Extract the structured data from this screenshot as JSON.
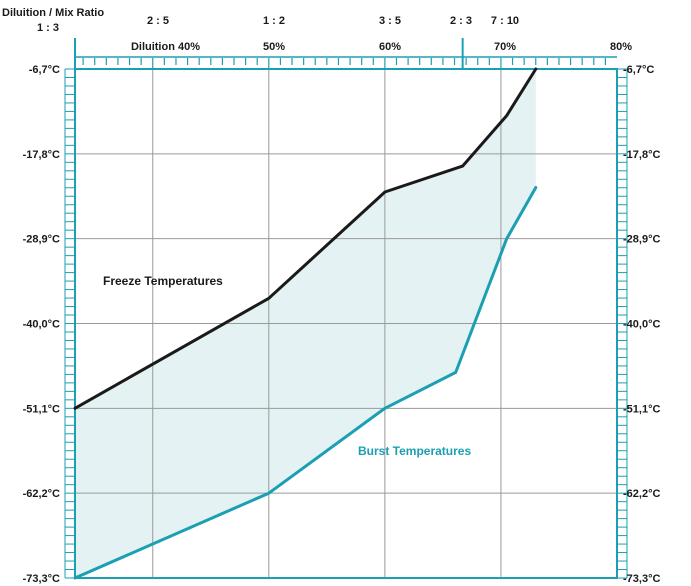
{
  "chart_data": {
    "type": "line",
    "title": "Diluition / Mix Ratio",
    "x_axis_label": "Diluition",
    "x_unit": "%",
    "xlim": [
      33.3,
      80
    ],
    "x_ticks": [
      {
        "value": 40,
        "label": "Diluition 40%"
      },
      {
        "value": 50,
        "label": "50%"
      },
      {
        "value": 60,
        "label": "60%"
      },
      {
        "value": 70,
        "label": "70%"
      },
      {
        "value": 80,
        "label": "80%"
      }
    ],
    "mix_ratio_ticks": [
      {
        "value": 33.3,
        "label": "1 : 3"
      },
      {
        "value": 40,
        "label": "2 : 5"
      },
      {
        "value": 50,
        "label": "1 : 2"
      },
      {
        "value": 60,
        "label": "3 : 5"
      },
      {
        "value": 66.7,
        "label": "2 : 3"
      },
      {
        "value": 70,
        "label": "7 : 10"
      }
    ],
    "y_unit": "°C",
    "ylim": [
      -73.3,
      -6.7
    ],
    "y_ticks": [
      {
        "value": -6.7,
        "label": "-6,7°C"
      },
      {
        "value": -17.8,
        "label": "-17,8°C"
      },
      {
        "value": -28.9,
        "label": "-28,9°C"
      },
      {
        "value": -40.0,
        "label": "-40,0°C"
      },
      {
        "value": -51.1,
        "label": "-51,1°C"
      },
      {
        "value": -62.2,
        "label": "-62,2°C"
      },
      {
        "value": -73.3,
        "label": "-73,3°C"
      }
    ],
    "grid": true,
    "shade_between_series": true,
    "series": [
      {
        "name": "Freeze Temperatures",
        "color": "#1a1a1a",
        "points": [
          [
            33.3,
            -51.1
          ],
          [
            50,
            -36.7
          ],
          [
            60,
            -22.8
          ],
          [
            66.7,
            -19.4
          ],
          [
            70.5,
            -12.8
          ],
          [
            73,
            -6.7
          ]
        ]
      },
      {
        "name": "Burst Temperatures",
        "color": "#1a9fb3",
        "points": [
          [
            33.3,
            -73.3
          ],
          [
            50,
            -62.2
          ],
          [
            60,
            -51.1
          ],
          [
            66.1,
            -46.4
          ],
          [
            70.5,
            -28.9
          ],
          [
            73,
            -22.2
          ]
        ]
      }
    ],
    "colors": {
      "frame": "#1a9fb3",
      "grid": "#9a9a9a",
      "fill": "#e4f2f4",
      "text": "#1a1a1a"
    }
  }
}
